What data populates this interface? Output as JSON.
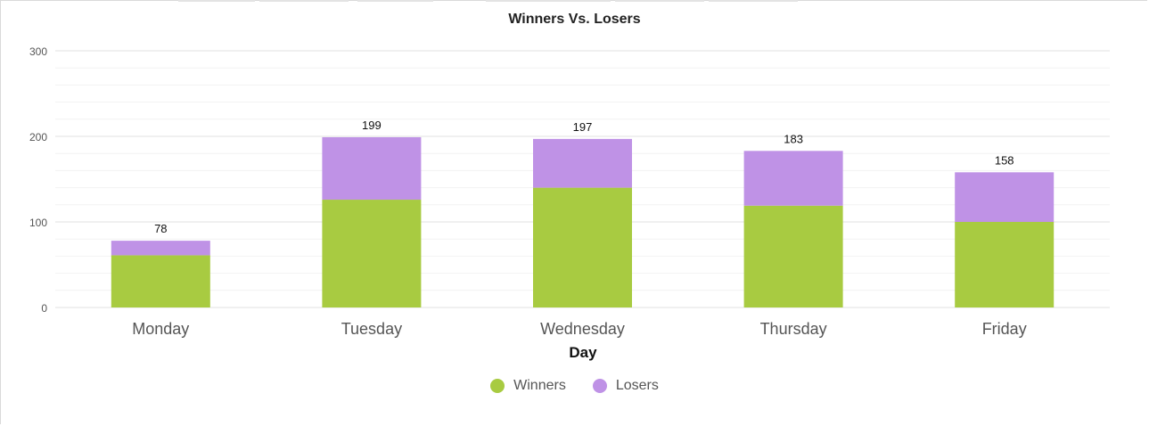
{
  "chart_data": {
    "type": "bar",
    "stacked": true,
    "title": "Winners Vs. Losers",
    "xlabel": "Day",
    "ylabel": "",
    "categories": [
      "Monday",
      "Tuesday",
      "Wednesday",
      "Thursday",
      "Friday"
    ],
    "series": [
      {
        "name": "Winners",
        "color": "#a8cb41",
        "values": [
          61,
          126,
          140,
          119,
          100
        ]
      },
      {
        "name": "Losers",
        "color": "#bf92e6",
        "values": [
          17,
          73,
          57,
          64,
          58
        ]
      }
    ],
    "totals": [
      "78",
      "199",
      "197",
      "183",
      "158"
    ],
    "ylim": [
      0,
      300
    ],
    "yticks": [
      "0",
      "100",
      "200",
      "300"
    ],
    "grid": true,
    "legend": "bottom-center"
  }
}
